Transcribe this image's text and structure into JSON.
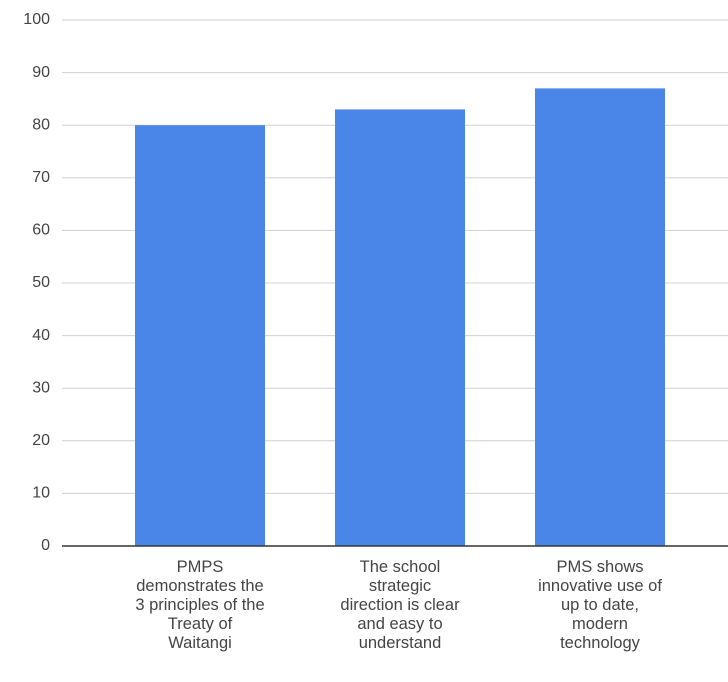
{
  "chart_data": {
    "type": "bar",
    "categories": [
      "PMPS\ndemonstrates the\n3 principles of the\nTreaty of\nWaitangi",
      "The school\nstrategic\ndirection is clear\nand easy to\nunderstand",
      "PMS shows\ninnovative use of\nup to date,\nmodern\ntechnology"
    ],
    "values": [
      80,
      83,
      87
    ],
    "color": "#4a86e8",
    "ylim": [
      0,
      100
    ],
    "yticks": [
      0,
      10,
      20,
      30,
      40,
      50,
      60,
      70,
      80,
      90,
      100
    ],
    "grid": true
  }
}
